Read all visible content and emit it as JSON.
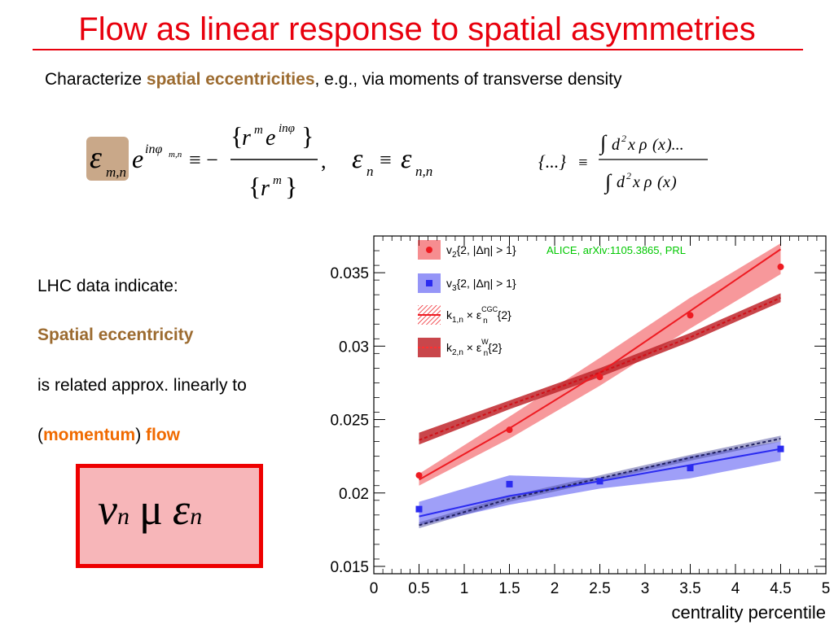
{
  "slide": {
    "title": "Flow as linear response to spatial asymmetries",
    "subline_pre": "Characterize ",
    "subline_hl": "spatial eccentricities",
    "subline_post": ", e.g., via moments of transverse density",
    "side_line1": "LHC data indicate:",
    "side_line2": "Spatial eccentricity",
    "side_line3": "is related approx. linearly to",
    "side_line4_open": "(",
    "side_line4_momentum": "momentum",
    "side_line4_close": ") ",
    "side_line4_flow": "flow",
    "box_lhs": "v",
    "box_lhs_sub": "n",
    "box_symbol": "μ",
    "box_rhs": "ε",
    "box_rhs_sub": "n"
  },
  "colors": {
    "title": "#e8000d",
    "highlight_text": "#9c6b30",
    "flow_text": "#f06a00",
    "v2": "#ee1b22",
    "v3": "#2b2bf0",
    "annotation": "#00c800"
  },
  "chart_data": {
    "type": "scatter",
    "annotation": "ALICE, arXiv:1105.3865, PRL",
    "xlabel": "centrality percentile",
    "ylabel": "",
    "xlim": [
      0,
      5
    ],
    "ylim": [
      0.0145,
      0.0375
    ],
    "x_ticks": [
      "0",
      "0.5",
      "1",
      "1.5",
      "2",
      "2.5",
      "3",
      "3.5",
      "4",
      "4.5",
      "5"
    ],
    "y_ticks": [
      "0.015",
      "0.02",
      "0.025",
      "0.03",
      "0.035"
    ],
    "y_tick_values": [
      0.015,
      0.02,
      0.025,
      0.03,
      0.035
    ],
    "legend": [
      {
        "text": "v2{2, |Δη| > 1}",
        "main": "v",
        "sub": "2",
        "rest": "{2, |Δη| > 1}",
        "kind": "v2-points"
      },
      {
        "text": "v3{2, |Δη| > 1}",
        "main": "v",
        "sub": "3",
        "rest": "{2, |Δη| > 1}",
        "kind": "v3-points"
      },
      {
        "text": "k1,n × εn CGC{2}",
        "main": "k",
        "sub": "1,n",
        "mid": " × ε",
        "sub2": "n",
        "sup2": "CGC",
        "rest": "{2}",
        "kind": "cgc-band"
      },
      {
        "text": "k2,n × εn W{2}",
        "main": "k",
        "sub": "2,n",
        "mid": " × ε",
        "sub2": "n",
        "sup2": "W",
        "rest": "{2}",
        "kind": "w-band"
      }
    ],
    "series": [
      {
        "name": "v2{2, |Δη| > 1}",
        "marker": "circle",
        "points": [
          [
            0.5,
            0.0212
          ],
          [
            1.5,
            0.0243
          ],
          [
            2.5,
            0.0279
          ],
          [
            3.5,
            0.0321
          ],
          [
            4.5,
            0.0354
          ]
        ]
      },
      {
        "name": "v3{2, |Δη| > 1}",
        "marker": "square",
        "points": [
          [
            0.5,
            0.0189
          ],
          [
            1.5,
            0.0206
          ],
          [
            2.5,
            0.0208
          ],
          [
            3.5,
            0.0217
          ],
          [
            4.5,
            0.023
          ]
        ]
      }
    ],
    "bands": [
      {
        "name": "k1,n × εn CGC{2}",
        "series_of": "v2",
        "line_style": "solid",
        "x": [
          0.5,
          1.5,
          2.5,
          3.5,
          4.5
        ],
        "center": [
          0.0209,
          0.0244,
          0.0282,
          0.0324,
          0.0366
        ],
        "lower": [
          0.0205,
          0.0237,
          0.0273,
          0.0312,
          0.0349
        ],
        "upper": [
          0.0213,
          0.0252,
          0.0292,
          0.0333,
          0.037
        ]
      },
      {
        "name": "k2,n × εn W{2}",
        "series_of": "v2",
        "line_style": "dashed",
        "x": [
          0.5,
          1.5,
          2.5,
          3.5,
          4.5
        ],
        "center": [
          0.0236,
          0.026,
          0.0282,
          0.0306,
          0.0333
        ],
        "lower": [
          0.0233,
          0.0257,
          0.0279,
          0.0303,
          0.033
        ],
        "upper": [
          0.0241,
          0.0263,
          0.0285,
          0.0309,
          0.0336
        ]
      },
      {
        "name": "k1,n × εn CGC{2} (v3)",
        "series_of": "v3",
        "line_style": "solid",
        "x": [
          0.5,
          1.5,
          2.5,
          3.5,
          4.5
        ],
        "center": [
          0.0184,
          0.0198,
          0.0208,
          0.0219,
          0.023
        ],
        "lower": [
          0.0178,
          0.0192,
          0.0203,
          0.021,
          0.0222
        ],
        "upper": [
          0.0194,
          0.0212,
          0.021,
          0.0225,
          0.0235
        ]
      },
      {
        "name": "k2,n × εn W{2} (v3)",
        "series_of": "v3",
        "line_style": "dashed",
        "x": [
          0.5,
          1.5,
          2.5,
          3.5,
          4.5
        ],
        "center": [
          0.0178,
          0.0196,
          0.021,
          0.0224,
          0.0237
        ],
        "lower": [
          0.0176,
          0.0194,
          0.0208,
          0.0222,
          0.0235
        ],
        "upper": [
          0.018,
          0.0198,
          0.0212,
          0.0226,
          0.0239
        ]
      }
    ]
  }
}
